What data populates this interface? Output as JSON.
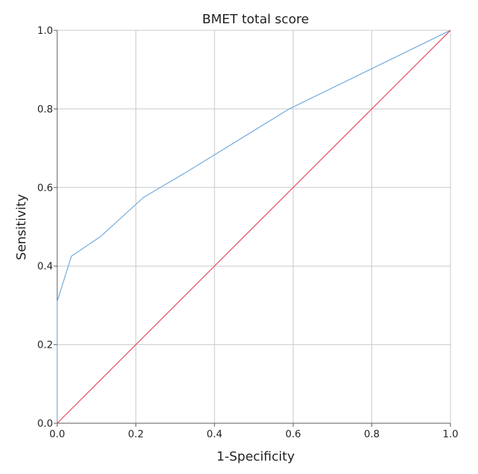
{
  "chart_data": {
    "type": "line",
    "title": "BMET total score",
    "xlabel": "1-Specificity",
    "ylabel": "Sensitivity",
    "xlim": [
      0,
      1
    ],
    "ylim": [
      0,
      1
    ],
    "x_ticks": [
      "0.0",
      "0.2",
      "0.4",
      "0.6",
      "0.8",
      "1.0"
    ],
    "y_ticks": [
      "0.0",
      "0.2",
      "0.4",
      "0.6",
      "0.8",
      "1.0"
    ],
    "grid": true,
    "legend": "none",
    "series": [
      {
        "color": "#6fa8dc",
        "points": [
          [
            0.0,
            0.0
          ],
          [
            0.0,
            0.31
          ],
          [
            0.036,
            0.425
          ],
          [
            0.11,
            0.475
          ],
          [
            0.22,
            0.575
          ],
          [
            0.33,
            0.64
          ],
          [
            0.59,
            0.8
          ],
          [
            1.0,
            1.0
          ]
        ]
      },
      {
        "color": "#e8435a",
        "points": [
          [
            0.0,
            0.0
          ],
          [
            1.0,
            1.0
          ]
        ]
      }
    ]
  }
}
